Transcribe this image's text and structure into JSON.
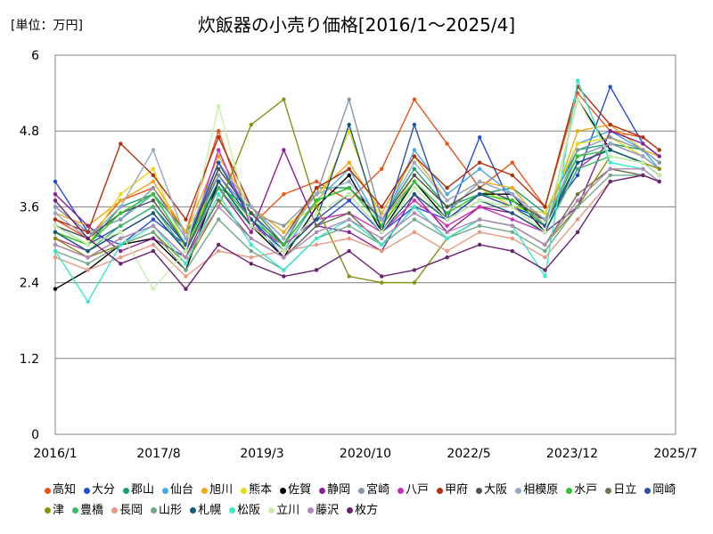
{
  "chart_data": {
    "type": "line",
    "title": "炊飯器の小売り価格[2016/1～2025/4]",
    "unit_label": "[単位：万円]",
    "xlabel": "",
    "ylabel": "",
    "ylim": [
      0,
      6
    ],
    "y_ticks": [
      "0",
      "1.2",
      "2.4",
      "3.6",
      "4.8",
      "6"
    ],
    "x_range": [
      "2016/1",
      "2025/7"
    ],
    "x_ticks": [
      "2016/1",
      "2017/8",
      "2019/3",
      "2020/10",
      "2022/5",
      "2023/12",
      "2025/7"
    ],
    "grid": "horizontal",
    "legend_position": "bottom",
    "x": [
      "2016/1",
      "2016/7",
      "2017/1",
      "2017/7",
      "2018/1",
      "2018/7",
      "2019/1",
      "2019/7",
      "2020/1",
      "2020/7",
      "2021/1",
      "2021/7",
      "2022/1",
      "2022/7",
      "2023/1",
      "2023/7",
      "2024/1",
      "2024/7",
      "2025/1",
      "2025/4"
    ],
    "series": [
      {
        "name": "高知",
        "color": "#e8541a",
        "values": [
          3.4,
          3.1,
          3.7,
          3.9,
          3.2,
          4.8,
          3.3,
          3.8,
          4.0,
          3.7,
          4.2,
          5.3,
          4.6,
          3.9,
          4.3,
          3.6,
          5.4,
          4.8,
          4.7,
          4.5
        ]
      },
      {
        "name": "大分",
        "color": "#1f4fd8",
        "values": [
          4.0,
          3.2,
          3.0,
          3.4,
          3.0,
          4.1,
          3.4,
          2.8,
          3.3,
          3.7,
          3.2,
          3.6,
          3.4,
          4.7,
          3.6,
          3.4,
          4.1,
          5.5,
          4.6,
          4.4
        ]
      },
      {
        "name": "郡山",
        "color": "#1a9e6e",
        "values": [
          3.3,
          3.0,
          3.6,
          3.8,
          3.2,
          3.9,
          3.6,
          3.0,
          3.9,
          3.9,
          3.4,
          4.2,
          3.6,
          3.8,
          3.9,
          3.5,
          4.5,
          4.6,
          4.5,
          4.3
        ]
      },
      {
        "name": "仙台",
        "color": "#4aa8e8",
        "values": [
          3.6,
          3.2,
          3.4,
          3.8,
          3.0,
          4.3,
          3.5,
          2.9,
          3.7,
          4.2,
          3.3,
          4.5,
          3.8,
          4.2,
          3.8,
          3.4,
          4.6,
          4.8,
          4.5,
          4.2
        ]
      },
      {
        "name": "旭川",
        "color": "#f0a818",
        "values": [
          3.5,
          3.3,
          3.7,
          4.0,
          3.2,
          4.4,
          3.6,
          3.2,
          3.8,
          4.3,
          3.5,
          4.4,
          3.7,
          4.0,
          3.9,
          3.3,
          4.8,
          4.9,
          4.5,
          4.4
        ]
      },
      {
        "name": "熊本",
        "color": "#e8d818",
        "values": [
          3.2,
          3.0,
          3.8,
          4.2,
          2.9,
          4.2,
          3.5,
          3.3,
          3.6,
          4.8,
          3.3,
          4.1,
          3.6,
          3.9,
          3.6,
          3.5,
          4.6,
          4.7,
          4.4,
          4.2
        ]
      },
      {
        "name": "佐賀",
        "color": "#000000",
        "values": [
          2.3,
          2.6,
          3.0,
          3.1,
          2.6,
          4.0,
          3.3,
          2.8,
          3.6,
          4.1,
          3.2,
          4.0,
          3.4,
          3.8,
          3.8,
          3.2,
          5.3,
          4.5,
          4.3,
          4.1
        ]
      },
      {
        "name": "静岡",
        "color": "#8a2096",
        "values": [
          3.8,
          3.3,
          2.9,
          3.1,
          2.8,
          3.9,
          3.2,
          4.5,
          3.3,
          3.2,
          2.9,
          3.8,
          3.2,
          3.6,
          3.5,
          3.2,
          3.6,
          4.8,
          4.6,
          4.4
        ]
      },
      {
        "name": "宮崎",
        "color": "#8898a8",
        "values": [
          3.6,
          3.2,
          3.4,
          3.9,
          3.1,
          4.1,
          3.5,
          3.3,
          3.8,
          5.3,
          3.4,
          4.0,
          3.5,
          4.0,
          3.8,
          3.3,
          4.5,
          4.7,
          4.5,
          4.3
        ]
      },
      {
        "name": "八戸",
        "color": "#c830b8",
        "values": [
          3.1,
          2.9,
          3.2,
          3.5,
          2.9,
          4.5,
          3.3,
          3.0,
          3.4,
          3.5,
          3.2,
          3.7,
          3.3,
          3.6,
          3.4,
          3.2,
          4.2,
          4.6,
          4.4,
          4.2
        ]
      },
      {
        "name": "甲府",
        "color": "#b03010",
        "values": [
          3.4,
          3.2,
          4.6,
          4.1,
          3.4,
          4.7,
          3.6,
          3.1,
          3.9,
          4.2,
          3.6,
          4.4,
          3.9,
          4.3,
          4.1,
          3.6,
          5.5,
          4.9,
          4.7,
          4.5
        ]
      },
      {
        "name": "大阪",
        "color": "#505050",
        "values": [
          3.3,
          3.1,
          3.5,
          3.7,
          3.0,
          4.2,
          3.5,
          3.0,
          3.7,
          3.9,
          3.4,
          4.1,
          3.6,
          3.9,
          3.7,
          3.4,
          4.4,
          4.6,
          4.4,
          4.2
        ]
      },
      {
        "name": "相模原",
        "color": "#98a8c8",
        "values": [
          3.5,
          3.1,
          3.6,
          4.5,
          3.1,
          4.3,
          3.6,
          3.1,
          3.8,
          4.0,
          3.4,
          4.3,
          3.7,
          4.0,
          3.8,
          3.4,
          4.4,
          4.6,
          4.4,
          4.2
        ]
      },
      {
        "name": "水戸",
        "color": "#28c828",
        "values": [
          3.2,
          3.0,
          3.5,
          3.8,
          3.0,
          4.0,
          3.4,
          3.0,
          3.7,
          3.9,
          3.3,
          4.0,
          3.5,
          3.8,
          3.7,
          3.3,
          4.4,
          4.5,
          4.3,
          4.1
        ]
      },
      {
        "name": "日立",
        "color": "#707050",
        "values": [
          3.0,
          2.8,
          3.1,
          3.3,
          2.8,
          3.7,
          3.1,
          2.8,
          3.3,
          3.5,
          3.0,
          3.6,
          3.1,
          3.4,
          3.3,
          3.0,
          3.8,
          4.2,
          4.1,
          4.0
        ]
      },
      {
        "name": "岡崎",
        "color": "#2850a8",
        "values": [
          3.3,
          3.0,
          3.3,
          3.6,
          3.0,
          4.3,
          3.4,
          2.9,
          3.4,
          3.8,
          3.2,
          4.9,
          3.4,
          3.8,
          3.6,
          3.3,
          4.3,
          4.5,
          4.3,
          4.1
        ]
      },
      {
        "name": "津",
        "color": "#889010",
        "values": [
          3.1,
          2.8,
          3.0,
          3.2,
          2.7,
          3.6,
          4.9,
          5.3,
          3.6,
          2.5,
          2.4,
          2.4,
          3.1,
          3.4,
          3.3,
          3.0,
          3.6,
          4.4,
          4.3,
          4.2
        ]
      },
      {
        "name": "豊橋",
        "color": "#38b868",
        "values": [
          3.2,
          2.9,
          3.3,
          3.6,
          2.9,
          3.9,
          3.3,
          2.9,
          3.5,
          3.8,
          3.2,
          3.9,
          3.4,
          3.7,
          3.6,
          3.2,
          4.2,
          4.4,
          4.3,
          4.1
        ]
      },
      {
        "name": "長岡",
        "color": "#e89880",
        "values": [
          2.8,
          2.6,
          2.8,
          3.0,
          2.5,
          2.9,
          2.8,
          2.9,
          3.0,
          3.1,
          2.9,
          3.2,
          2.9,
          3.2,
          3.1,
          2.8,
          3.4,
          4.0,
          4.1,
          4.0
        ]
      },
      {
        "name": "山形",
        "color": "#70a888",
        "values": [
          2.9,
          2.7,
          3.0,
          3.2,
          2.6,
          3.4,
          2.9,
          2.6,
          3.1,
          3.3,
          3.0,
          3.4,
          3.1,
          3.3,
          3.2,
          2.9,
          3.6,
          4.1,
          4.1,
          4.0
        ]
      },
      {
        "name": "札幌",
        "color": "#185878",
        "values": [
          3.2,
          2.9,
          3.2,
          3.5,
          2.9,
          4.0,
          3.3,
          2.9,
          3.4,
          4.9,
          3.2,
          3.8,
          3.4,
          3.7,
          3.5,
          3.2,
          4.3,
          4.5,
          4.3,
          4.1
        ]
      },
      {
        "name": "松阪",
        "color": "#38e8c8",
        "values": [
          2.9,
          2.1,
          3.0,
          3.3,
          2.7,
          3.8,
          3.0,
          2.6,
          3.1,
          3.4,
          3.0,
          3.6,
          3.1,
          3.4,
          3.3,
          2.5,
          5.6,
          4.3,
          4.2,
          4.0
        ]
      },
      {
        "name": "立川",
        "color": "#c8f0a8",
        "values": [
          3.3,
          3.0,
          3.2,
          2.3,
          2.9,
          5.2,
          3.3,
          2.9,
          3.5,
          3.8,
          3.2,
          3.9,
          3.4,
          3.7,
          3.6,
          3.2,
          5.3,
          4.4,
          4.3,
          4.1
        ]
      },
      {
        "name": "藤沢",
        "color": "#b088b8",
        "values": [
          3.0,
          2.8,
          3.1,
          3.3,
          2.8,
          3.6,
          3.1,
          2.8,
          3.2,
          3.4,
          3.1,
          3.5,
          3.2,
          3.4,
          3.3,
          3.0,
          3.7,
          4.2,
          4.2,
          4.0
        ]
      },
      {
        "name": "枚方",
        "color": "#6a2070",
        "values": [
          3.7,
          3.1,
          2.7,
          2.9,
          2.3,
          3.0,
          2.7,
          2.5,
          2.6,
          2.9,
          2.5,
          2.6,
          2.8,
          3.0,
          2.9,
          2.6,
          3.2,
          4.0,
          4.1,
          4.0
        ]
      }
    ]
  }
}
